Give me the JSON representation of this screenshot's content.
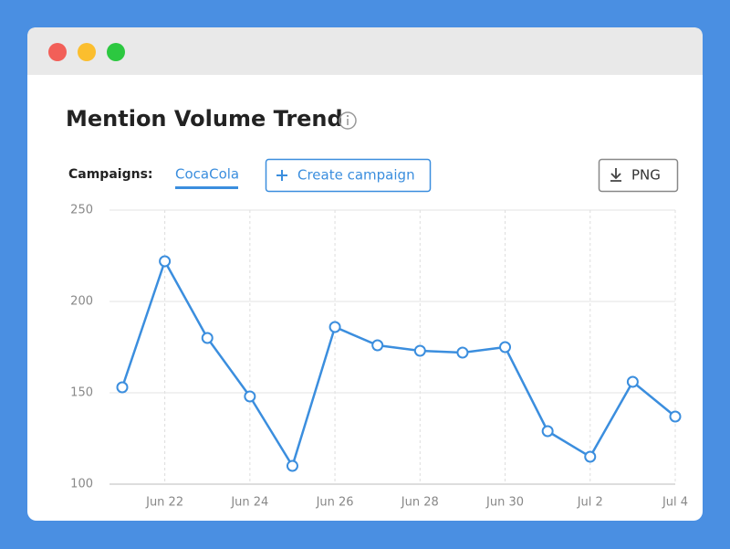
{
  "ui": {
    "campaigns_label": "Campaigns:",
    "active_campaign": "CocaCola",
    "create_button": "Create campaign",
    "export_button": "PNG"
  },
  "chart_data": {
    "type": "line",
    "title": "Mention Volume Trend",
    "categories": [
      null,
      "Jun 22",
      null,
      "Jun 24",
      null,
      "Jun 26",
      null,
      "Jun 28",
      null,
      "Jun 30",
      null,
      "Jul 2",
      null,
      "Jul 4"
    ],
    "values": [
      153,
      222,
      180,
      148,
      110,
      186,
      176,
      173,
      172,
      175,
      129,
      115,
      156,
      137
    ],
    "color": "#3b8ede",
    "ylim": [
      100,
      250
    ],
    "yticks": [
      100,
      150,
      200,
      250
    ],
    "grid": true
  }
}
